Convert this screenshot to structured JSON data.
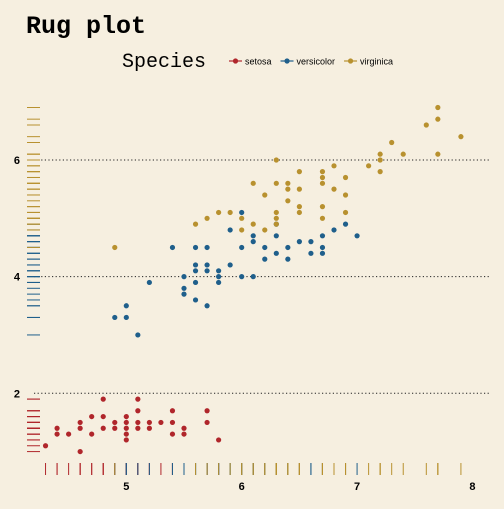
{
  "chart_data": {
    "type": "scatter",
    "title": "Rug plot",
    "xlabel": "",
    "ylabel": "",
    "xlim": [
      4.2,
      8.1
    ],
    "ylim": [
      0.65,
      7.2
    ],
    "x_ticks": [
      5,
      6,
      7,
      8
    ],
    "y_ticks": [
      2,
      4,
      6
    ],
    "grid": "horizontal-dotted",
    "legend": {
      "title": "Species",
      "position": "top"
    },
    "rug": [
      "left",
      "bottom"
    ],
    "colors": {
      "background": "#f6efe0",
      "grid": "#222222"
    },
    "series": [
      {
        "name": "setosa",
        "color": "#b0262b",
        "points": [
          [
            4.3,
            1.1
          ],
          [
            4.4,
            1.3
          ],
          [
            4.4,
            1.4
          ],
          [
            4.5,
            1.3
          ],
          [
            4.6,
            1.0
          ],
          [
            4.6,
            1.4
          ],
          [
            4.6,
            1.5
          ],
          [
            4.7,
            1.3
          ],
          [
            4.7,
            1.6
          ],
          [
            4.8,
            1.4
          ],
          [
            4.8,
            1.6
          ],
          [
            4.8,
            1.9
          ],
          [
            4.9,
            1.4
          ],
          [
            4.9,
            1.5
          ],
          [
            5.0,
            1.2
          ],
          [
            5.0,
            1.3
          ],
          [
            5.0,
            1.4
          ],
          [
            5.0,
            1.5
          ],
          [
            5.0,
            1.6
          ],
          [
            5.1,
            1.4
          ],
          [
            5.1,
            1.5
          ],
          [
            5.1,
            1.7
          ],
          [
            5.1,
            1.9
          ],
          [
            5.2,
            1.4
          ],
          [
            5.2,
            1.5
          ],
          [
            5.3,
            1.5
          ],
          [
            5.4,
            1.3
          ],
          [
            5.4,
            1.5
          ],
          [
            5.4,
            1.7
          ],
          [
            5.5,
            1.3
          ],
          [
            5.5,
            1.4
          ],
          [
            5.7,
            1.5
          ],
          [
            5.7,
            1.7
          ],
          [
            5.8,
            1.2
          ]
        ]
      },
      {
        "name": "versicolor",
        "color": "#1f5f8b",
        "points": [
          [
            4.9,
            3.3
          ],
          [
            5.0,
            3.3
          ],
          [
            5.0,
            3.5
          ],
          [
            5.1,
            3.0
          ],
          [
            5.2,
            3.9
          ],
          [
            5.4,
            4.5
          ],
          [
            5.5,
            3.7
          ],
          [
            5.5,
            3.8
          ],
          [
            5.5,
            4.0
          ],
          [
            5.6,
            3.6
          ],
          [
            5.6,
            3.9
          ],
          [
            5.6,
            4.1
          ],
          [
            5.6,
            4.2
          ],
          [
            5.6,
            4.5
          ],
          [
            5.7,
            3.5
          ],
          [
            5.7,
            4.1
          ],
          [
            5.7,
            4.2
          ],
          [
            5.7,
            4.5
          ],
          [
            5.8,
            3.9
          ],
          [
            5.8,
            4.0
          ],
          [
            5.8,
            4.1
          ],
          [
            5.9,
            4.2
          ],
          [
            5.9,
            4.8
          ],
          [
            6.0,
            4.0
          ],
          [
            6.0,
            4.5
          ],
          [
            6.0,
            5.1
          ],
          [
            6.1,
            4.0
          ],
          [
            6.1,
            4.6
          ],
          [
            6.1,
            4.7
          ],
          [
            6.2,
            4.3
          ],
          [
            6.2,
            4.5
          ],
          [
            6.3,
            4.4
          ],
          [
            6.3,
            4.7
          ],
          [
            6.3,
            4.9
          ],
          [
            6.4,
            4.3
          ],
          [
            6.4,
            4.5
          ],
          [
            6.5,
            4.6
          ],
          [
            6.6,
            4.4
          ],
          [
            6.6,
            4.6
          ],
          [
            6.7,
            4.4
          ],
          [
            6.7,
            4.5
          ],
          [
            6.7,
            4.7
          ],
          [
            6.8,
            4.8
          ],
          [
            6.9,
            4.9
          ],
          [
            7.0,
            4.7
          ]
        ]
      },
      {
        "name": "virginica",
        "color": "#b8912f",
        "points": [
          [
            4.9,
            4.5
          ],
          [
            5.6,
            4.9
          ],
          [
            5.7,
            5.0
          ],
          [
            5.8,
            5.1
          ],
          [
            5.9,
            5.1
          ],
          [
            6.0,
            4.8
          ],
          [
            6.0,
            5.0
          ],
          [
            6.1,
            4.9
          ],
          [
            6.1,
            5.6
          ],
          [
            6.2,
            4.8
          ],
          [
            6.2,
            5.4
          ],
          [
            6.3,
            4.9
          ],
          [
            6.3,
            5.0
          ],
          [
            6.3,
            5.1
          ],
          [
            6.3,
            5.6
          ],
          [
            6.3,
            6.0
          ],
          [
            6.4,
            5.3
          ],
          [
            6.4,
            5.5
          ],
          [
            6.4,
            5.6
          ],
          [
            6.5,
            5.1
          ],
          [
            6.5,
            5.2
          ],
          [
            6.5,
            5.5
          ],
          [
            6.5,
            5.8
          ],
          [
            6.7,
            5.0
          ],
          [
            6.7,
            5.2
          ],
          [
            6.7,
            5.6
          ],
          [
            6.7,
            5.7
          ],
          [
            6.7,
            5.8
          ],
          [
            6.8,
            5.5
          ],
          [
            6.8,
            5.9
          ],
          [
            6.9,
            5.1
          ],
          [
            6.9,
            5.4
          ],
          [
            6.9,
            5.7
          ],
          [
            7.1,
            5.9
          ],
          [
            7.2,
            5.8
          ],
          [
            7.2,
            6.0
          ],
          [
            7.2,
            6.1
          ],
          [
            7.3,
            6.3
          ],
          [
            7.4,
            6.1
          ],
          [
            7.6,
            6.6
          ],
          [
            7.7,
            6.1
          ],
          [
            7.7,
            6.7
          ],
          [
            7.7,
            6.9
          ],
          [
            7.9,
            6.4
          ]
        ]
      }
    ]
  }
}
